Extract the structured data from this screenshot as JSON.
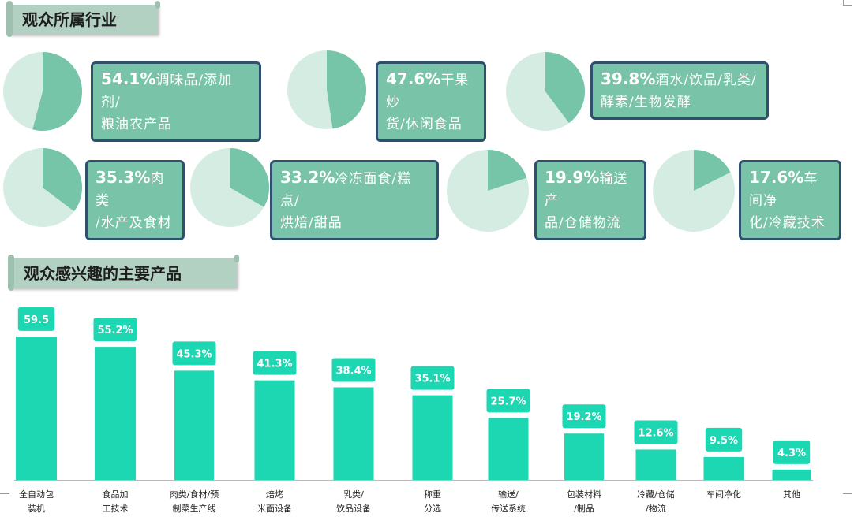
{
  "sections": {
    "industry_title": "观众所属行业",
    "products_title": "观众感兴趣的主要产品"
  },
  "colors": {
    "pie_highlight": "#76c5a8",
    "pie_rest": "#d5ece3",
    "callout_fill": "#79c4a8",
    "callout_border": "#2f4f6e",
    "bar": "#1dd6b2",
    "banner": "#b3d1c3"
  },
  "chart_data": [
    {
      "type": "pie",
      "title": "观众所属行业",
      "items": [
        {
          "value": 54.1,
          "pct_label": "54.1%",
          "label": "调味品/添加剂/粮油农产品",
          "lines": [
            "调味品/添加剂/",
            "粮油农产品"
          ]
        },
        {
          "value": 47.6,
          "pct_label": "47.6%",
          "label": "干果炒货/休闲食品",
          "lines": [
            "干果炒",
            "货/休闲食品"
          ]
        },
        {
          "value": 39.8,
          "pct_label": "39.8%",
          "label": "酒水/饮品/乳类/酵素/生物发酵",
          "lines": [
            "酒水/饮品/乳类/",
            "酵素/生物发酵"
          ]
        },
        {
          "value": 35.3,
          "pct_label": "35.3%",
          "label": "肉类/水产及食材",
          "lines": [
            "肉类",
            "/水产及食材"
          ]
        },
        {
          "value": 33.2,
          "pct_label": "33.2%",
          "label": "冷冻面食/糕点/烘焙/甜品",
          "lines": [
            "冷冻面食/糕点/",
            "烘焙/甜品"
          ]
        },
        {
          "value": 19.9,
          "pct_label": "19.9%",
          "label": "输送产品/仓储物流",
          "lines": [
            "输送产",
            "品/仓储物流"
          ]
        },
        {
          "value": 17.6,
          "pct_label": "17.6%",
          "label": "车间净化/冷藏技术",
          "lines": [
            "车间净",
            "化/冷藏技术"
          ]
        }
      ]
    },
    {
      "type": "bar",
      "title": "观众感兴趣的主要产品",
      "categories": [
        [
          "全自动包",
          "装机"
        ],
        [
          "食品加",
          "工技术"
        ],
        [
          "肉类/食材/预",
          "制菜生产线"
        ],
        [
          "焙烤",
          "米面设备"
        ],
        [
          "乳类/",
          "饮品设备"
        ],
        [
          "称重",
          "分选"
        ],
        [
          "输送/",
          "传送系统"
        ],
        [
          "包装材料",
          "/制品"
        ],
        [
          "冷藏/仓储",
          "/物流"
        ],
        [
          "车间净化"
        ],
        [
          "其他"
        ]
      ],
      "values": [
        59.5,
        55.2,
        45.3,
        41.3,
        38.4,
        35.1,
        25.7,
        19.2,
        12.6,
        9.5,
        4.3
      ],
      "value_labels": [
        "59.5",
        "55.2%",
        "45.3%",
        "41.3%",
        "38.4%",
        "35.1%",
        "25.7%",
        "19.2%",
        "12.6%",
        "9.5%",
        "4.3%"
      ],
      "xlabel": "",
      "ylabel": "",
      "ylim": [
        0,
        64
      ],
      "grid": false,
      "legend": "none"
    }
  ]
}
